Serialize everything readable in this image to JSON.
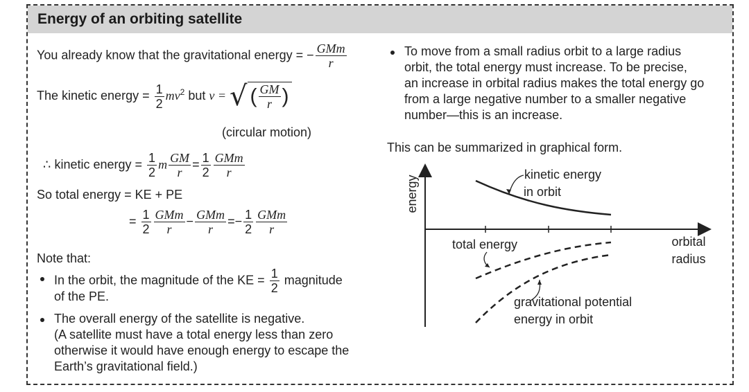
{
  "title": "Energy of an orbiting satellite",
  "left": {
    "line1_prefix": "You already know that the gravitational energy = −",
    "line1_num": "GMm",
    "line1_den": "r",
    "line2_prefix": "The kinetic energy =",
    "line2_half_num": "1",
    "line2_half_den": "2",
    "line2_mv": "mv",
    "line2_sup": "2",
    "line2_but": "but",
    "line2_v": "v =",
    "line2_sqrt_num": "GM",
    "line2_sqrt_den": "r",
    "circular_motion": "(circular motion)",
    "line3_prefix": "∴ kinetic energy =",
    "line3_m": "m",
    "line3_gm": "GM",
    "line3_r": "r",
    "line3_gmm": "GMm",
    "one": "1",
    "two": "2",
    "eq": "=",
    "total_line": "So total energy = KE + PE",
    "total2_gmm": "GMm",
    "total2_r": "r",
    "minus": "−",
    "note": "Note that:",
    "bullet1_a": "In the orbit, the magnitude of the KE =",
    "bullet1_b": "magnitude",
    "bullet1_c": "of the PE.",
    "bullet2_1": "The overall energy of the satellite is negative.",
    "bullet2_2": "(A satellite must have a total energy less than zero",
    "bullet2_3": "otherwise it would have enough energy to escape the",
    "bullet2_4": "Earth’s gravitational field.)"
  },
  "right": {
    "bullet_lines": [
      "To move from a small radius orbit to a large radius",
      "orbit, the total energy must increase. To be precise,",
      "an increase in orbital radius makes the total energy go",
      "from a large negative number to a smaller negative",
      "number—this is an increase."
    ],
    "summary": "This can be summarized in graphical form."
  },
  "graph": {
    "y_label": "energy",
    "x_label_1": "orbital",
    "x_label_2": "radius",
    "ke_label_1": "kinetic energy",
    "ke_label_2": "in orbit",
    "total_label": "total energy",
    "gpe_label_1": "gravitational potential",
    "gpe_label_2": "energy in orbit"
  }
}
